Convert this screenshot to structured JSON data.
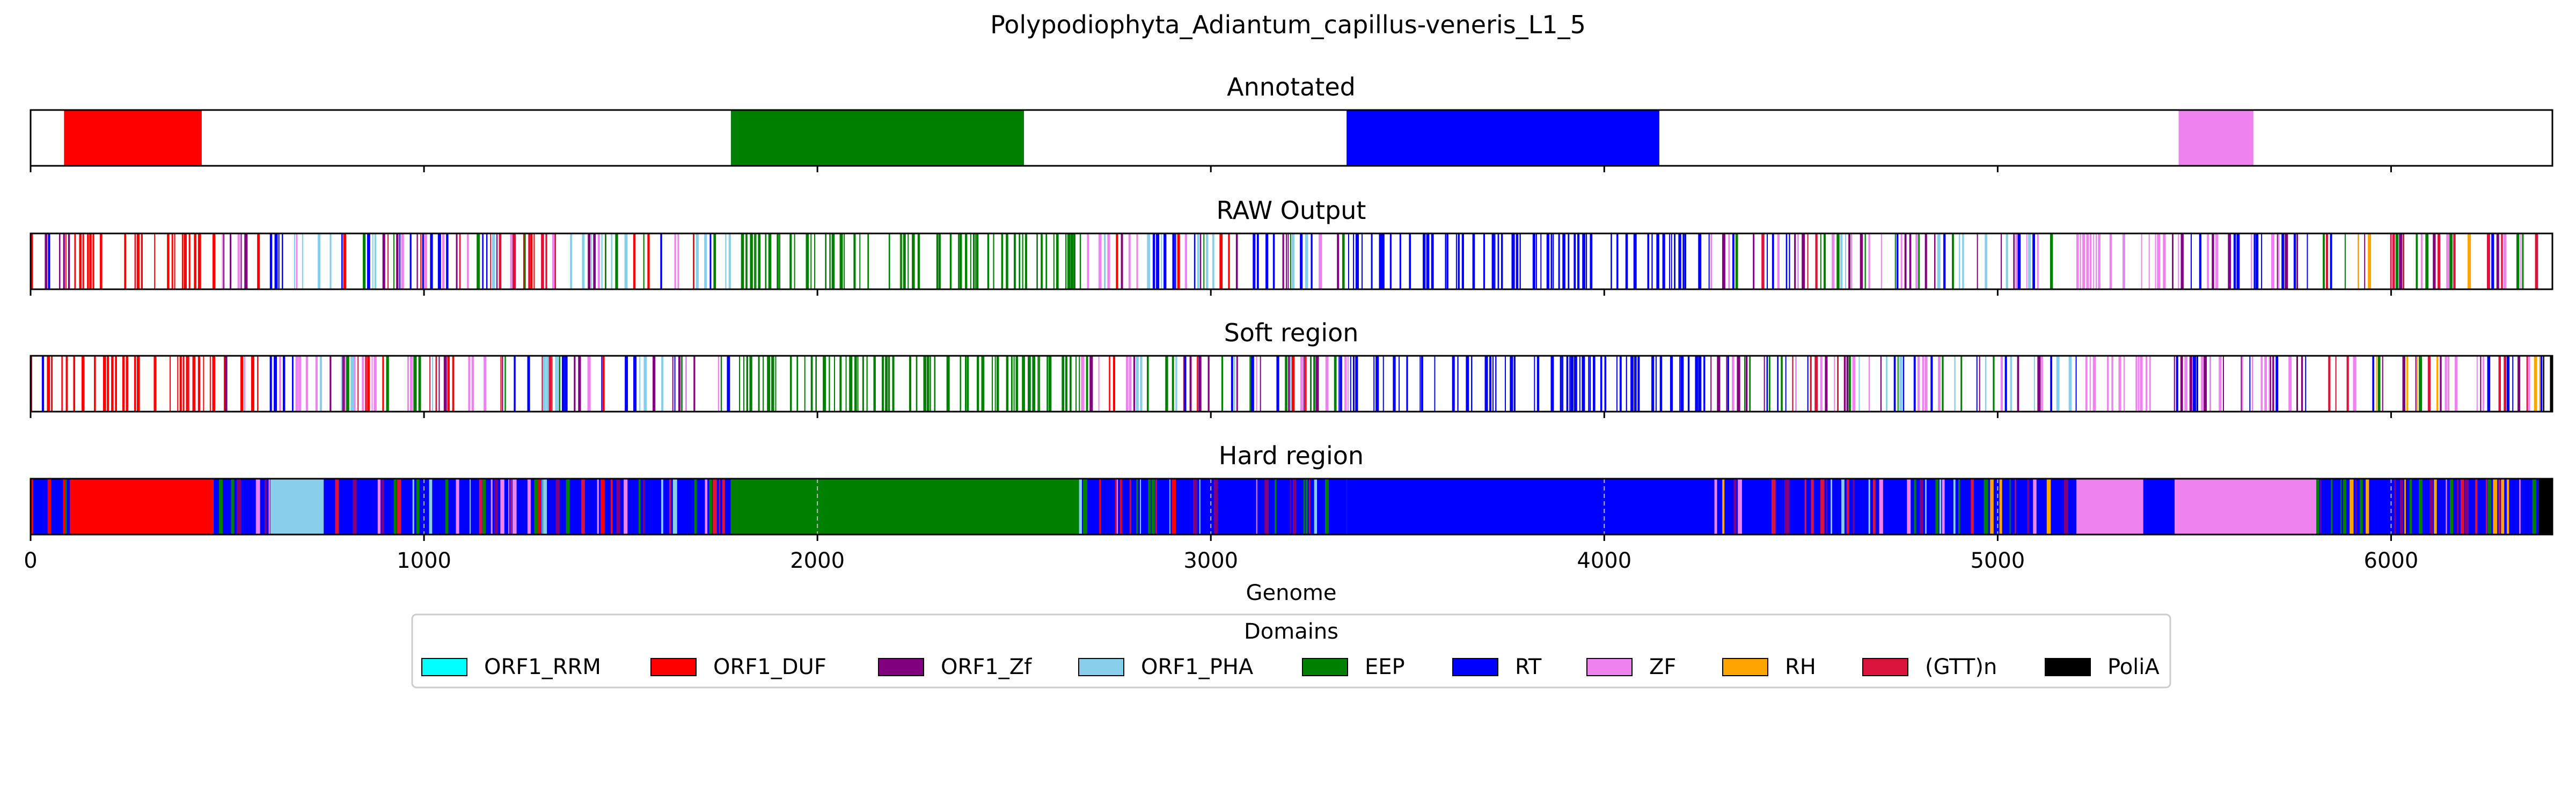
{
  "chart_data": {
    "type": "bar",
    "title": "Polypodiophyta_Adiantum_capillus-veneris_L1_5",
    "xlabel": "Genome",
    "xlim": [
      0,
      6410
    ],
    "xticks": [
      "0",
      "1000",
      "2000",
      "3000",
      "4000",
      "5000",
      "6000"
    ],
    "colors": {
      "ORF1_RRM": "#00ffff",
      "ORF1_DUF": "#ff0000",
      "ORF1_Zf": "#800080",
      "ORF1_PHA": "#87ceeb",
      "EEP": "#008000",
      "RT": "#0000ff",
      "ZF": "#ee82ee",
      "RH": "#ffa500",
      "(GTT)n": "#dc143c",
      "PoliA": "#000000"
    },
    "legend": {
      "title": "Domains",
      "placement": "lower-center",
      "entries": [
        "ORF1_RRM",
        "ORF1_DUF",
        "ORF1_Zf",
        "ORF1_PHA",
        "EEP",
        "RT",
        "ZF",
        "RH",
        "(GTT)n",
        "PoliA"
      ]
    },
    "panels": [
      {
        "title": "Annotated",
        "mode": "segments",
        "segments": [
          {
            "domain": "ORF1_DUF",
            "start": 85,
            "end": 435
          },
          {
            "domain": "EEP",
            "start": 1780,
            "end": 2525
          },
          {
            "domain": "RT",
            "start": 3345,
            "end": 4140
          },
          {
            "domain": "ZF",
            "start": 5460,
            "end": 5650
          }
        ]
      },
      {
        "title": "RAW Output",
        "mode": "stripes",
        "stripe_density": 0.55,
        "regions": [
          {
            "start": 0,
            "end": 100,
            "mix": [
              "RT",
              "ORF1_DUF",
              "ORF1_Zf"
            ]
          },
          {
            "start": 100,
            "end": 440,
            "mix": [
              "ORF1_DUF"
            ]
          },
          {
            "start": 440,
            "end": 600,
            "mix": [
              "RT",
              "ORF1_Zf",
              "ORF1_DUF",
              "ZF"
            ]
          },
          {
            "start": 600,
            "end": 750,
            "mix": [
              "ORF1_PHA",
              "ZF",
              "RT"
            ]
          },
          {
            "start": 750,
            "end": 1780,
            "mix": [
              "RT",
              "ORF1_Zf",
              "ORF1_DUF",
              "ZF",
              "EEP",
              "(GTT)n",
              "ORF1_PHA"
            ]
          },
          {
            "start": 1780,
            "end": 2670,
            "mix": [
              "EEP"
            ]
          },
          {
            "start": 2670,
            "end": 3350,
            "mix": [
              "RT",
              "ZF",
              "ORF1_Zf",
              "EEP",
              "ORF1_DUF",
              "ORF1_PHA"
            ]
          },
          {
            "start": 3350,
            "end": 4270,
            "mix": [
              "RT"
            ]
          },
          {
            "start": 4270,
            "end": 4600,
            "mix": [
              "RT",
              "ORF1_Zf",
              "EEP",
              "ZF",
              "(GTT)n"
            ]
          },
          {
            "start": 4600,
            "end": 5200,
            "mix": [
              "RT",
              "ZF",
              "ORF1_Zf",
              "ORF1_PHA",
              "EEP"
            ]
          },
          {
            "start": 5200,
            "end": 5420,
            "mix": [
              "ZF"
            ]
          },
          {
            "start": 5420,
            "end": 5800,
            "mix": [
              "ZF",
              "RT",
              "ORF1_Zf"
            ]
          },
          {
            "start": 5800,
            "end": 6380,
            "mix": [
              "RT",
              "EEP",
              "ORF1_Zf",
              "ZF",
              "RH",
              "(GTT)n"
            ]
          },
          {
            "start": 6380,
            "end": 6410,
            "mix": [
              "PoliA",
              "RT"
            ]
          }
        ]
      },
      {
        "title": "Soft region",
        "mode": "stripes",
        "stripe_density": 0.55,
        "regions": [
          {
            "start": 0,
            "end": 100,
            "mix": [
              "RT",
              "ORF1_DUF",
              "ORF1_Zf"
            ]
          },
          {
            "start": 100,
            "end": 440,
            "mix": [
              "ORF1_DUF"
            ]
          },
          {
            "start": 440,
            "end": 600,
            "mix": [
              "RT",
              "ORF1_Zf",
              "ORF1_DUF",
              "ZF"
            ]
          },
          {
            "start": 600,
            "end": 750,
            "mix": [
              "ORF1_PHA",
              "ZF",
              "RT"
            ]
          },
          {
            "start": 750,
            "end": 1780,
            "mix": [
              "RT",
              "ORF1_Zf",
              "ORF1_DUF",
              "ZF",
              "EEP",
              "(GTT)n",
              "ORF1_PHA"
            ]
          },
          {
            "start": 1780,
            "end": 2670,
            "mix": [
              "EEP"
            ]
          },
          {
            "start": 2670,
            "end": 3350,
            "mix": [
              "RT",
              "ZF",
              "ORF1_Zf",
              "EEP",
              "ORF1_DUF",
              "ORF1_PHA"
            ]
          },
          {
            "start": 3350,
            "end": 4270,
            "mix": [
              "RT"
            ]
          },
          {
            "start": 4270,
            "end": 4600,
            "mix": [
              "RT",
              "ORF1_Zf",
              "EEP",
              "ZF",
              "(GTT)n"
            ]
          },
          {
            "start": 4600,
            "end": 5200,
            "mix": [
              "RT",
              "ZF",
              "ORF1_Zf",
              "ORF1_PHA",
              "EEP"
            ]
          },
          {
            "start": 5200,
            "end": 5420,
            "mix": [
              "ZF"
            ]
          },
          {
            "start": 5420,
            "end": 5800,
            "mix": [
              "ZF",
              "RT",
              "ORF1_Zf"
            ]
          },
          {
            "start": 5800,
            "end": 6380,
            "mix": [
              "RT",
              "EEP",
              "ORF1_Zf",
              "ZF",
              "RH",
              "(GTT)n"
            ]
          },
          {
            "start": 6380,
            "end": 6410,
            "mix": [
              "PoliA",
              "RT"
            ]
          }
        ]
      },
      {
        "title": "Hard region",
        "mode": "segments",
        "segments": [
          {
            "domain": "RT",
            "start": 0,
            "end": 100
          },
          {
            "domain": "ORF1_DUF",
            "start": 100,
            "end": 465
          },
          {
            "domain": "RT",
            "start": 465,
            "end": 610
          },
          {
            "domain": "ORF1_PHA",
            "start": 610,
            "end": 745
          },
          {
            "domain": "RT",
            "start": 745,
            "end": 1780
          },
          {
            "domain": "EEP",
            "start": 1780,
            "end": 2665
          },
          {
            "domain": "RT",
            "start": 2665,
            "end": 3345
          },
          {
            "domain": "RT",
            "start": 3345,
            "end": 4280
          },
          {
            "domain": "RT",
            "start": 4280,
            "end": 5200
          },
          {
            "domain": "ZF",
            "start": 5200,
            "end": 5370
          },
          {
            "domain": "RT",
            "start": 5370,
            "end": 5450
          },
          {
            "domain": "ZF",
            "start": 5450,
            "end": 5810
          },
          {
            "domain": "RT",
            "start": 5810,
            "end": 6375
          },
          {
            "domain": "PoliA",
            "start": 6375,
            "end": 6410
          }
        ],
        "mix_regions": [
          {
            "start": 0,
            "end": 100,
            "mix": [
              "RT",
              "ORF1_DUF",
              "ORF1_Zf",
              "EEP"
            ]
          },
          {
            "start": 465,
            "end": 610,
            "mix": [
              "EEP",
              "ORF1_Zf",
              "ORF1_DUF",
              "ZF"
            ]
          },
          {
            "start": 745,
            "end": 1780,
            "mix": [
              "EEP",
              "ORF1_Zf",
              "ORF1_DUF",
              "ZF",
              "ORF1_PHA",
              "(GTT)n"
            ]
          },
          {
            "start": 2665,
            "end": 3345,
            "mix": [
              "ZF",
              "ORF1_Zf",
              "EEP",
              "ORF1_DUF",
              "ORF1_PHA"
            ]
          },
          {
            "start": 4280,
            "end": 5200,
            "mix": [
              "EEP",
              "ORF1_Zf",
              "ZF",
              "(GTT)n",
              "ORF1_PHA",
              "RH"
            ]
          },
          {
            "start": 5810,
            "end": 6375,
            "mix": [
              "EEP",
              "ORF1_Zf",
              "ZF",
              "(GTT)n",
              "RH"
            ]
          }
        ],
        "gridlines": [
          1000,
          2000,
          3000,
          4000,
          5000,
          6000
        ]
      }
    ]
  }
}
